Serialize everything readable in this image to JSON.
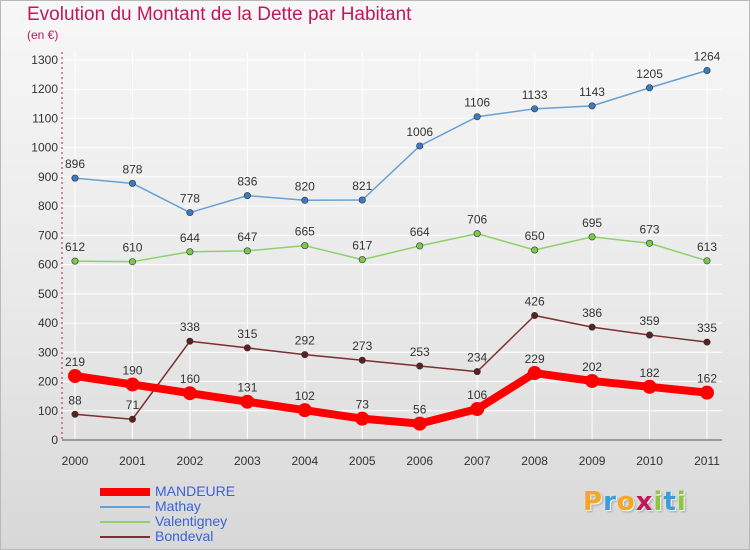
{
  "title": "Evolution du Montant de la Dette par Habitant",
  "subtitle": "(en €)",
  "logo": {
    "letters": [
      {
        "char": "P",
        "color": "#f5a623"
      },
      {
        "char": "r",
        "color": "#3b9dd8"
      },
      {
        "char": "o",
        "color": "#f5a623"
      },
      {
        "char": "x",
        "color": "#c2185b"
      },
      {
        "char": "i",
        "color": "#8cc63f"
      },
      {
        "char": "t",
        "color": "#3b9dd8"
      },
      {
        "char": "i",
        "color": "#8cc63f"
      }
    ]
  },
  "chart_data": {
    "type": "line",
    "categories": [
      "2000",
      "2001",
      "2002",
      "2003",
      "2004",
      "2005",
      "2006",
      "2007",
      "2008",
      "2009",
      "2010",
      "2011"
    ],
    "ylim": [
      0,
      1300
    ],
    "yticks": [
      0,
      100,
      200,
      300,
      400,
      500,
      600,
      700,
      800,
      900,
      1000,
      1100,
      1200,
      1300
    ],
    "grid": true,
    "legend_position": "bottom-left",
    "series": [
      {
        "name": "Mathay",
        "color": "#6a9fd4",
        "marker": "#3a7cc0",
        "emphasis": false,
        "values": [
          896,
          878,
          778,
          836,
          820,
          821,
          1006,
          1106,
          1133,
          1143,
          1205,
          1264
        ]
      },
      {
        "name": "Valentigney",
        "color": "#8fd16a",
        "marker": "#7cc84e",
        "emphasis": false,
        "values": [
          612,
          610,
          644,
          647,
          665,
          617,
          664,
          706,
          650,
          695,
          673,
          613
        ]
      },
      {
        "name": "Bondeval",
        "color": "#7d2f2f",
        "marker": "#5e1f1f",
        "emphasis": false,
        "values": [
          88,
          71,
          338,
          315,
          292,
          273,
          253,
          234,
          426,
          386,
          359,
          335
        ]
      },
      {
        "name": "MANDEURE",
        "color": "#ff0000",
        "marker": "#ff0000",
        "emphasis": true,
        "values": [
          219,
          190,
          160,
          131,
          102,
          73,
          56,
          106,
          229,
          202,
          182,
          162
        ]
      }
    ],
    "legend_order": [
      "MANDEURE",
      "Mathay",
      "Valentigney",
      "Bondeval"
    ]
  }
}
